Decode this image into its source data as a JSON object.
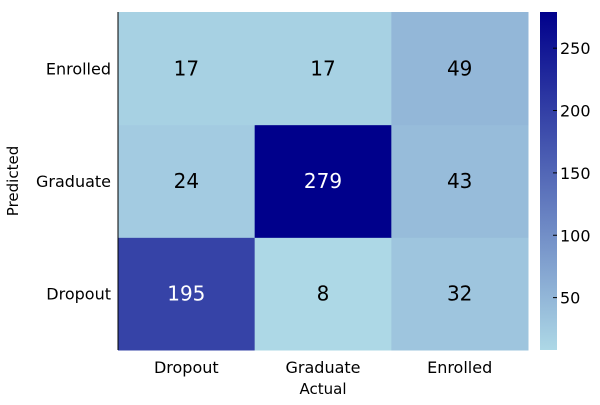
{
  "chart_data": {
    "type": "heatmap",
    "xlabel": "Actual",
    "ylabel": "Predicted",
    "x_categories": [
      "Dropout",
      "Graduate",
      "Enrolled"
    ],
    "y_categories": [
      "Dropout",
      "Graduate",
      "Enrolled"
    ],
    "values": [
      [
        195,
        8,
        32
      ],
      [
        24,
        279,
        43
      ],
      [
        17,
        17,
        49
      ]
    ],
    "colorbar": {
      "min": 8,
      "max": 279,
      "ticks": [
        50,
        100,
        150,
        200,
        250
      ],
      "colors": [
        "#add8e6",
        "#00008b"
      ]
    },
    "cell_text_colors": {
      "light": "#000000",
      "dark": "#ffffff"
    }
  }
}
